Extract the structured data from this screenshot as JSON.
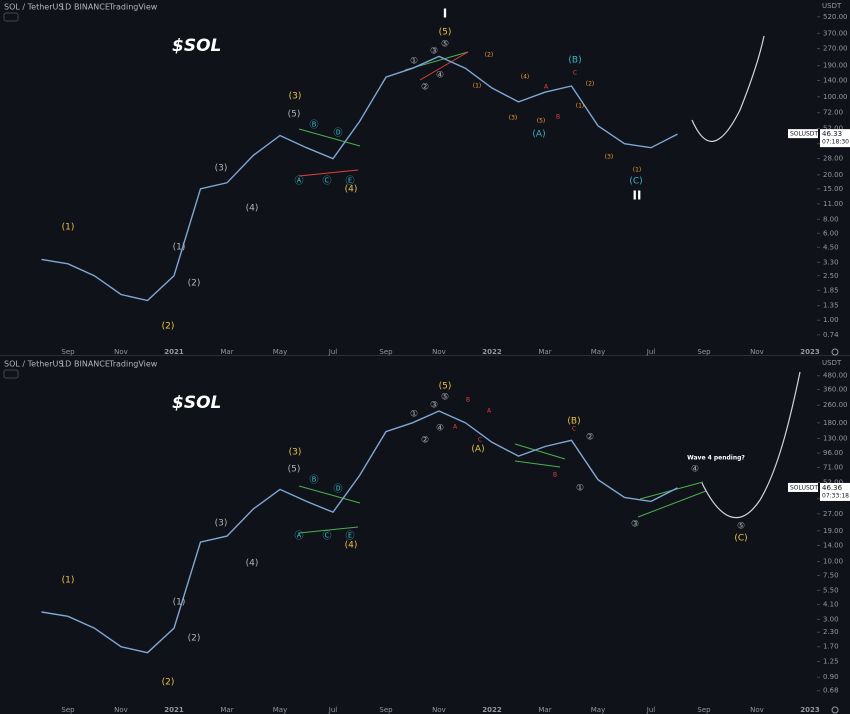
{
  "chart_data": [
    {
      "type": "line",
      "symbol": "SOL / TetherUS",
      "interval": "1D",
      "exchange": "BINANCE",
      "platform": "TradingView",
      "title": "$SOL",
      "currency": "USDT",
      "log_scale": true,
      "color": "#7fa7d6",
      "categories": [
        null,
        "Sep",
        null,
        "Nov",
        null,
        "2021",
        null,
        "Mar",
        null,
        "May",
        null,
        "Jul",
        null,
        "Sep",
        null,
        "Nov",
        null,
        "2022",
        null,
        "Mar",
        null,
        "May",
        null,
        "Jul",
        null,
        "Sep",
        null,
        "Nov",
        null,
        "2023"
      ],
      "values": [
        3.5,
        3.2,
        2.5,
        1.7,
        1.5,
        2.5,
        15,
        17,
        30,
        45,
        35,
        28,
        60,
        150,
        180,
        230,
        180,
        120,
        90,
        110,
        125,
        55,
        38,
        35,
        46.33,
        null,
        null,
        null,
        null,
        null
      ],
      "ylim": [
        0.6,
        650
      ],
      "yticks": [
        {
          "value": 520,
          "label": "520.00"
        },
        {
          "value": 370,
          "label": "370.00"
        },
        {
          "value": 270,
          "label": "270.00"
        },
        {
          "value": 190,
          "label": "190.00"
        },
        {
          "value": 140,
          "label": "140.00"
        },
        {
          "value": 100,
          "label": "100.00"
        },
        {
          "value": 72,
          "label": "72.00"
        },
        {
          "value": 52,
          "label": "52.00"
        },
        {
          "value": 38,
          "label": "38.00"
        },
        {
          "value": 28,
          "label": "28.00"
        },
        {
          "value": 20,
          "label": "20.00"
        },
        {
          "value": 15,
          "label": "15.00"
        },
        {
          "value": 11,
          "label": "11.00"
        },
        {
          "value": 8,
          "label": "8.00"
        },
        {
          "value": 6,
          "label": "6.00"
        },
        {
          "value": 4.5,
          "label": "4.50"
        },
        {
          "value": 3.3,
          "label": "3.30"
        },
        {
          "value": 2.5,
          "label": "2.50"
        },
        {
          "value": 1.85,
          "label": "1.85"
        },
        {
          "value": 1.35,
          "label": "1.35"
        },
        {
          "value": 1,
          "label": "1.00"
        },
        {
          "value": 0.74,
          "label": "0.74"
        }
      ],
      "price_tag": {
        "name": "SOLUSDT",
        "value": 46.33,
        "countdown": "07:18:30"
      },
      "annotations": [
        {
          "text": "(1)",
          "color": "#e8c24a"
        },
        {
          "text": "(2)",
          "color": "#e8c24a"
        },
        {
          "text": "(1)",
          "color": "#b0b3b8"
        },
        {
          "text": "(2)",
          "color": "#b0b3b8"
        },
        {
          "text": "(3)",
          "color": "#b0b3b8"
        },
        {
          "text": "(4)",
          "color": "#b0b3b8"
        },
        {
          "text": "(5)",
          "color": "#b0b3b8"
        },
        {
          "text": "(3)",
          "color": "#e8c24a"
        },
        {
          "text": "(4)",
          "color": "#e8c24a"
        },
        {
          "text": "(5)",
          "color": "#e8c24a"
        },
        {
          "text": "I",
          "color": "#ffffff"
        },
        {
          "text": "Ⓐ",
          "color": "#3bb4c9"
        },
        {
          "text": "Ⓑ",
          "color": "#3bb4c9"
        },
        {
          "text": "Ⓒ",
          "color": "#3bb4c9"
        },
        {
          "text": "Ⓓ",
          "color": "#3bb4c9"
        },
        {
          "text": "Ⓔ",
          "color": "#3bb4c9"
        },
        {
          "text": "(A)",
          "color": "#3bb4c9"
        },
        {
          "text": "(B)",
          "color": "#3bb4c9"
        },
        {
          "text": "(C)",
          "color": "#3bb4c9"
        },
        {
          "text": "II",
          "color": "#ffffff"
        },
        {
          "text": "(1)",
          "color": "#f0a030"
        },
        {
          "text": "(2)",
          "color": "#f0a030"
        },
        {
          "text": "(3)",
          "color": "#f0a030"
        },
        {
          "text": "(4)",
          "color": "#f0a030"
        },
        {
          "text": "(5)",
          "color": "#f0a030"
        },
        {
          "text": "A",
          "color": "#e04040"
        },
        {
          "text": "B",
          "color": "#e04040"
        },
        {
          "text": "C",
          "color": "#e04040"
        },
        {
          "text": "(1)",
          "color": "#f0a030"
        },
        {
          "text": "(2)",
          "color": "#f0a030"
        },
        {
          "text": "(3)",
          "color": "#f0a030"
        },
        {
          "text": "(1)",
          "color": "#f0a030"
        },
        {
          "text": "①",
          "color": "#b0b3b8"
        },
        {
          "text": "②",
          "color": "#b0b3b8"
        },
        {
          "text": "③",
          "color": "#b0b3b8"
        },
        {
          "text": "④",
          "color": "#b0b3b8"
        },
        {
          "text": "⑤",
          "color": "#b0b3b8"
        }
      ]
    },
    {
      "type": "line",
      "symbol": "SOL / TetherUS",
      "interval": "1D",
      "exchange": "BINANCE",
      "platform": "TradingView",
      "title": "$SOL",
      "currency": "USDT",
      "log_scale": true,
      "color": "#7fa7d6",
      "categories": [
        null,
        "Sep",
        null,
        "Nov",
        null,
        "2021",
        null,
        "Mar",
        null,
        "May",
        null,
        "Jul",
        null,
        "Sep",
        null,
        "Nov",
        null,
        "2022",
        null,
        "Mar",
        null,
        "May",
        null,
        "Jul",
        null,
        "Sep",
        null,
        "Nov",
        null,
        "2023"
      ],
      "values": [
        3.5,
        3.2,
        2.5,
        1.7,
        1.5,
        2.5,
        15,
        17,
        30,
        45,
        35,
        28,
        60,
        150,
        180,
        230,
        180,
        120,
        90,
        110,
        125,
        55,
        38,
        35,
        46.36,
        null,
        null,
        null,
        null,
        null
      ],
      "ylim": [
        0.56,
        600
      ],
      "yticks": [
        {
          "value": 480,
          "label": "480.00"
        },
        {
          "value": 360,
          "label": "360.00"
        },
        {
          "value": 260,
          "label": "260.00"
        },
        {
          "value": 180,
          "label": "180.00"
        },
        {
          "value": 130,
          "label": "130.00"
        },
        {
          "value": 96,
          "label": "96.00"
        },
        {
          "value": 71,
          "label": "71.00"
        },
        {
          "value": 52,
          "label": "52.00"
        },
        {
          "value": 37,
          "label": "37.00"
        },
        {
          "value": 27,
          "label": "27.00"
        },
        {
          "value": 19,
          "label": "19.00"
        },
        {
          "value": 14,
          "label": "14.00"
        },
        {
          "value": 10,
          "label": "10.00"
        },
        {
          "value": 7.5,
          "label": "7.50"
        },
        {
          "value": 5.5,
          "label": "5.50"
        },
        {
          "value": 4.1,
          "label": "4.10"
        },
        {
          "value": 3,
          "label": "3.00"
        },
        {
          "value": 2.3,
          "label": "2.30"
        },
        {
          "value": 1.7,
          "label": "1.70"
        },
        {
          "value": 1.25,
          "label": "1.25"
        },
        {
          "value": 0.9,
          "label": "0.90"
        },
        {
          "value": 0.68,
          "label": "0.68"
        }
      ],
      "price_tag": {
        "name": "SOLUSDT",
        "value": 46.36,
        "countdown": "07:33:18"
      },
      "annotations": [
        {
          "text": "(1)",
          "color": "#e8c24a"
        },
        {
          "text": "(2)",
          "color": "#e8c24a"
        },
        {
          "text": "(1)",
          "color": "#b0b3b8"
        },
        {
          "text": "(2)",
          "color": "#b0b3b8"
        },
        {
          "text": "(3)",
          "color": "#b0b3b8"
        },
        {
          "text": "(4)",
          "color": "#b0b3b8"
        },
        {
          "text": "(5)",
          "color": "#b0b3b8"
        },
        {
          "text": "(3)",
          "color": "#e8c24a"
        },
        {
          "text": "(4)",
          "color": "#e8c24a"
        },
        {
          "text": "(5)",
          "color": "#e8c24a"
        },
        {
          "text": "Ⓐ",
          "color": "#3bb4c9"
        },
        {
          "text": "Ⓑ",
          "color": "#3bb4c9"
        },
        {
          "text": "Ⓒ",
          "color": "#3bb4c9"
        },
        {
          "text": "Ⓓ",
          "color": "#3bb4c9"
        },
        {
          "text": "Ⓔ",
          "color": "#3bb4c9"
        },
        {
          "text": "A",
          "color": "#e04040"
        },
        {
          "text": "B",
          "color": "#e04040"
        },
        {
          "text": "C",
          "color": "#e04040"
        },
        {
          "text": "(A)",
          "color": "#e8c24a"
        },
        {
          "text": "A",
          "color": "#e04040"
        },
        {
          "text": "B",
          "color": "#e04040"
        },
        {
          "text": "(B)",
          "color": "#e8c24a"
        },
        {
          "text": "C",
          "color": "#e04040"
        },
        {
          "text": "①",
          "color": "#b0b3b8"
        },
        {
          "text": "②",
          "color": "#b0b3b8"
        },
        {
          "text": "③",
          "color": "#b0b3b8"
        },
        {
          "text": "④",
          "color": "#b0b3b8"
        },
        {
          "text": "⑤",
          "color": "#b0b3b8"
        },
        {
          "text": "(C)",
          "color": "#e8c24a"
        },
        {
          "text": "Wave 4 pending?",
          "color": "#ffffff"
        },
        {
          "text": "①",
          "color": "#b0b3b8"
        },
        {
          "text": "②",
          "color": "#b0b3b8"
        },
        {
          "text": "③",
          "color": "#b0b3b8"
        },
        {
          "text": "④",
          "color": "#b0b3b8"
        },
        {
          "text": "⑤",
          "color": "#b0b3b8"
        }
      ]
    }
  ]
}
